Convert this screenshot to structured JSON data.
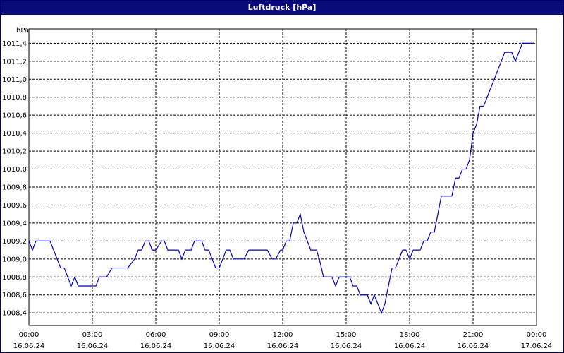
{
  "chart_data": {
    "type": "line",
    "title": "Luftdruck [hPa]",
    "y_label": "hPa",
    "x": [
      0,
      0.17,
      0.33,
      1,
      1.5,
      1.67,
      2,
      2.17,
      2.33,
      3.17,
      3.33,
      3.67,
      3.93,
      4.67,
      5,
      5.17,
      5.33,
      5.5,
      5.67,
      5.83,
      6,
      6.27,
      6.4,
      6.57,
      7.07,
      7.23,
      7.4,
      7.67,
      7.83,
      8.17,
      8.33,
      8.5,
      8.83,
      9,
      9.33,
      9.5,
      9.67,
      10.17,
      10.4,
      11.27,
      11.5,
      11.67,
      11.9,
      12,
      12.17,
      12.33,
      12.5,
      12.67,
      12.83,
      13,
      13.33,
      13.6,
      13.73,
      13.93,
      14.33,
      14.5,
      14.67,
      15.17,
      15.33,
      15.5,
      15.67,
      16,
      16.17,
      16.33,
      16.67,
      16.83,
      17,
      17.17,
      17.33,
      17.67,
      17.83,
      18,
      18.17,
      18.5,
      18.67,
      18.83,
      19,
      19.17,
      19.5,
      20,
      20.17,
      20.33,
      20.5,
      20.67,
      20.83,
      21,
      21.17,
      21.33,
      21.5,
      22.5,
      22.83,
      23,
      23.33,
      23.9
    ],
    "series": [
      {
        "name": "Luftdruck",
        "color": "#0000c0",
        "values": [
          1009.2,
          1009.1,
          1009.2,
          1009.2,
          1008.9,
          1008.9,
          1008.7,
          1008.8,
          1008.7,
          1008.7,
          1008.8,
          1008.8,
          1008.9,
          1008.9,
          1009.0,
          1009.1,
          1009.1,
          1009.2,
          1009.2,
          1009.1,
          1009.1,
          1009.2,
          1009.2,
          1009.1,
          1009.1,
          1009.0,
          1009.1,
          1009.1,
          1009.2,
          1009.2,
          1009.1,
          1009.1,
          1008.9,
          1008.9,
          1009.1,
          1009.1,
          1009.0,
          1009.0,
          1009.1,
          1009.1,
          1009.0,
          1009.0,
          1009.1,
          1009.1,
          1009.2,
          1009.2,
          1009.4,
          1009.4,
          1009.5,
          1009.3,
          1009.1,
          1009.1,
          1009.0,
          1008.8,
          1008.8,
          1008.7,
          1008.8,
          1008.8,
          1008.7,
          1008.7,
          1008.6,
          1008.6,
          1008.5,
          1008.6,
          1008.4,
          1008.5,
          1008.7,
          1008.9,
          1008.9,
          1009.1,
          1009.1,
          1009.0,
          1009.1,
          1009.1,
          1009.2,
          1009.2,
          1009.3,
          1009.3,
          1009.7,
          1009.7,
          1009.9,
          1009.9,
          1010.0,
          1010.0,
          1010.1,
          1010.4,
          1010.5,
          1010.7,
          1010.7,
          1011.3,
          1011.3,
          1011.2,
          1011.4,
          1011.4
        ]
      }
    ],
    "xlim": [
      0,
      24
    ],
    "xticks": [
      {
        "value": 0,
        "label": "00:00",
        "date": "16.06.24"
      },
      {
        "value": 3,
        "label": "03:00",
        "date": "16.06.24"
      },
      {
        "value": 6,
        "label": "06:00",
        "date": "16.06.24"
      },
      {
        "value": 9,
        "label": "09:00",
        "date": "16.06.24"
      },
      {
        "value": 12,
        "label": "12:00",
        "date": "16.06.24"
      },
      {
        "value": 15,
        "label": "15:00",
        "date": "16.06.24"
      },
      {
        "value": 18,
        "label": "18:00",
        "date": "16.06.24"
      },
      {
        "value": 21,
        "label": "21:00",
        "date": "16.06.24"
      },
      {
        "value": 24,
        "label": "00:00",
        "date": "17.06.24"
      }
    ],
    "ylim": [
      1008.26,
      1011.56
    ],
    "yticks": [
      {
        "value": 1008.4,
        "label": "1008,4"
      },
      {
        "value": 1008.6,
        "label": "1008,6"
      },
      {
        "value": 1008.8,
        "label": "1008,8"
      },
      {
        "value": 1009.0,
        "label": "1009,0"
      },
      {
        "value": 1009.2,
        "label": "1009,2"
      },
      {
        "value": 1009.4,
        "label": "1009,4"
      },
      {
        "value": 1009.6,
        "label": "1009,6"
      },
      {
        "value": 1009.8,
        "label": "1009,8"
      },
      {
        "value": 1010.0,
        "label": "1010,0"
      },
      {
        "value": 1010.2,
        "label": "1010,2"
      },
      {
        "value": 1010.4,
        "label": "1010,4"
      },
      {
        "value": 1010.6,
        "label": "1010,6"
      },
      {
        "value": 1010.8,
        "label": "1010,8"
      },
      {
        "value": 1011.0,
        "label": "1011,0"
      },
      {
        "value": 1011.2,
        "label": "1011,2"
      },
      {
        "value": 1011.4,
        "label": "1011,4"
      }
    ],
    "grid": true
  }
}
